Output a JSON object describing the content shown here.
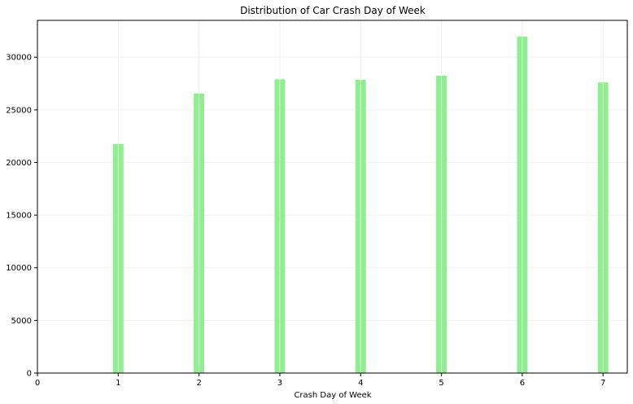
{
  "chart_data": {
    "type": "bar",
    "title": "Distribution of Car Crash Day of Week",
    "xlabel": "Crash Day of Week",
    "ylabel": "",
    "x": [
      1,
      2,
      3,
      4,
      5,
      6,
      7
    ],
    "values": [
      21750,
      26550,
      27900,
      27850,
      28250,
      31950,
      27600
    ],
    "xlim": [
      0,
      7.3
    ],
    "ylim": [
      0,
      33500
    ],
    "xticks": [
      0,
      1,
      2,
      3,
      4,
      5,
      6,
      7
    ],
    "xtick_labels": [
      "0",
      "1",
      "2",
      "3",
      "4",
      "5",
      "6",
      "7"
    ],
    "yticks": [
      0,
      5000,
      10000,
      15000,
      20000,
      25000,
      30000
    ],
    "ytick_labels": [
      "0",
      "5000",
      "10000",
      "15000",
      "20000",
      "25000",
      "30000"
    ],
    "bar_color": "#90ee90",
    "grid": true,
    "grid_color": "#f0f0f0"
  }
}
